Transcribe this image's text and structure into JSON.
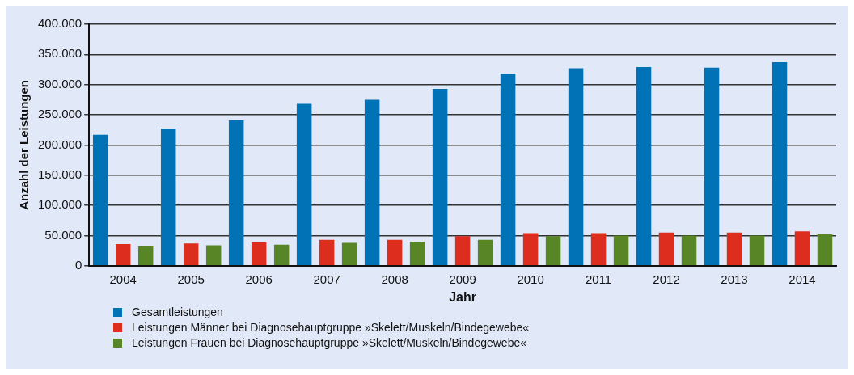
{
  "chart_data": {
    "type": "bar",
    "xlabel": "Jahr",
    "ylabel": "Anzahl der Leistungen",
    "categories": [
      "2004",
      "2005",
      "2006",
      "2007",
      "2008",
      "2009",
      "2010",
      "2011",
      "2012",
      "2013",
      "2014"
    ],
    "series": [
      {
        "name": "Gesamtleistungen",
        "color": "#0072b5",
        "values": [
          217000,
          227000,
          241000,
          268000,
          275000,
          293000,
          318000,
          327000,
          329000,
          328000,
          337000
        ]
      },
      {
        "name": "Leistungen Männer bei Diagnosehauptgruppe »Skelett/Muskeln/Bindegewebe«",
        "color": "#dc2d1e",
        "values": [
          36000,
          37000,
          39000,
          43000,
          43000,
          49000,
          54000,
          54000,
          55000,
          55000,
          57000
        ]
      },
      {
        "name": "Leistungen Frauen bei Diagnosehauptgruppe »Skelett/Muskeln/Bindegewebe«",
        "color": "#588526",
        "values": [
          32000,
          34000,
          35000,
          38000,
          40000,
          43000,
          49000,
          50000,
          50000,
          50000,
          52000
        ]
      }
    ],
    "ylim": [
      0,
      400000
    ],
    "yticks": [
      {
        "value": 0,
        "label": "0"
      },
      {
        "value": 50000,
        "label": "50.000"
      },
      {
        "value": 100000,
        "label": "100.000"
      },
      {
        "value": 150000,
        "label": "150.000"
      },
      {
        "value": 200000,
        "label": "200.000"
      },
      {
        "value": 250000,
        "label": "250.000"
      },
      {
        "value": 300000,
        "label": "300.000"
      },
      {
        "value": 350000,
        "label": "350.000"
      },
      {
        "value": 400000,
        "label": "400.000"
      }
    ],
    "grid": "y",
    "legend": "bottom left"
  }
}
